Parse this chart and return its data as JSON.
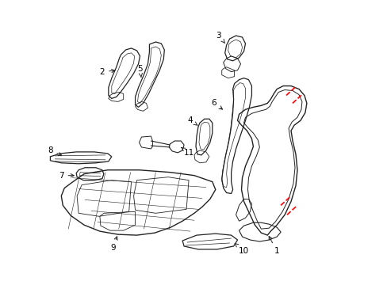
{
  "background_color": "#ffffff",
  "line_color": "#222222",
  "red_color": "#ff0000",
  "figsize": [
    4.89,
    3.6
  ],
  "dpi": 100
}
